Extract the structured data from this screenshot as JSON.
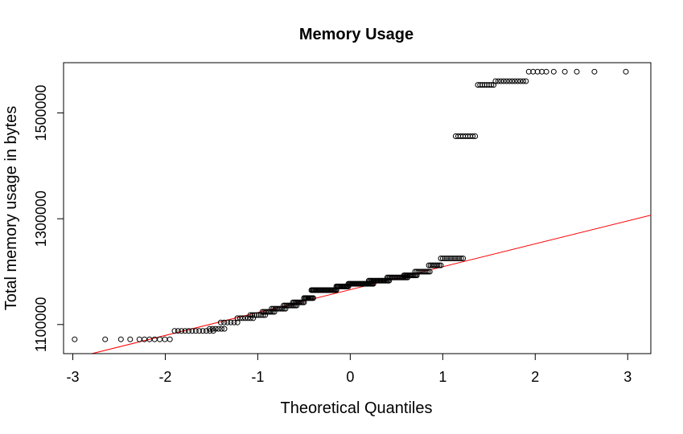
{
  "chart_data": {
    "type": "scatter",
    "title": "Memory Usage",
    "xlabel": "Theoretical Quantiles",
    "ylabel": "Total memory usage in bytes",
    "xlim": [
      -3.1,
      3.25
    ],
    "ylim": [
      1045000,
      1595000
    ],
    "xticks": [
      -3,
      -2,
      -1,
      0,
      1,
      2,
      3
    ],
    "xtick_labels": [
      "-3",
      "-2",
      "-1",
      "0",
      "1",
      "2",
      "3"
    ],
    "yticks": [
      1100000,
      1300000,
      1500000
    ],
    "ytick_labels": [
      "1100000",
      "1300000",
      "1500000"
    ],
    "grid": false,
    "legend": "none",
    "colors": {
      "points": "#000000",
      "reference_line": "#ff0000"
    },
    "points": {
      "segments": [
        {
          "x0": -2.98,
          "x1": -2.98,
          "y": 1072000,
          "n": 1
        },
        {
          "x0": -2.65,
          "x1": -2.65,
          "y": 1072000,
          "n": 1
        },
        {
          "x0": -2.48,
          "x1": -2.38,
          "y": 1072000,
          "n": 2
        },
        {
          "x0": -2.28,
          "x1": -1.95,
          "y": 1072000,
          "n": 7
        },
        {
          "x0": -1.9,
          "x1": -1.48,
          "y": 1088000,
          "n": 12
        },
        {
          "x0": -1.52,
          "x1": -1.36,
          "y": 1092000,
          "n": 6
        },
        {
          "x0": -1.4,
          "x1": -1.22,
          "y": 1104000,
          "n": 6
        },
        {
          "x0": -1.22,
          "x1": -1.05,
          "y": 1112000,
          "n": 7
        },
        {
          "x0": -1.08,
          "x1": -0.92,
          "y": 1118000,
          "n": 8
        },
        {
          "x0": -0.95,
          "x1": -0.82,
          "y": 1124000,
          "n": 8
        },
        {
          "x0": -0.85,
          "x1": -0.7,
          "y": 1130000,
          "n": 9
        },
        {
          "x0": -0.72,
          "x1": -0.58,
          "y": 1136000,
          "n": 10
        },
        {
          "x0": -0.62,
          "x1": -0.5,
          "y": 1142000,
          "n": 10
        },
        {
          "x0": -0.5,
          "x1": -0.4,
          "y": 1150000,
          "n": 10
        },
        {
          "x0": -0.42,
          "x1": -0.15,
          "y": 1165000,
          "n": 28
        },
        {
          "x0": -0.15,
          "x1": -0.02,
          "y": 1172000,
          "n": 14
        },
        {
          "x0": -0.02,
          "x1": 0.25,
          "y": 1177000,
          "n": 26
        },
        {
          "x0": 0.2,
          "x1": 0.42,
          "y": 1183000,
          "n": 20
        },
        {
          "x0": 0.4,
          "x1": 0.62,
          "y": 1189000,
          "n": 18
        },
        {
          "x0": 0.58,
          "x1": 0.72,
          "y": 1193000,
          "n": 12
        },
        {
          "x0": 0.7,
          "x1": 0.86,
          "y": 1200000,
          "n": 10
        },
        {
          "x0": 0.85,
          "x1": 0.98,
          "y": 1212000,
          "n": 8
        },
        {
          "x0": 0.98,
          "x1": 1.22,
          "y": 1225000,
          "n": 12
        },
        {
          "x0": 1.14,
          "x1": 1.35,
          "y": 1456000,
          "n": 9
        },
        {
          "x0": 1.38,
          "x1": 1.55,
          "y": 1553000,
          "n": 8
        },
        {
          "x0": 1.57,
          "x1": 1.9,
          "y": 1560000,
          "n": 12
        },
        {
          "x0": 1.93,
          "x1": 2.12,
          "y": 1578000,
          "n": 5
        },
        {
          "x0": 2.2,
          "x1": 2.2,
          "y": 1578000,
          "n": 1
        },
        {
          "x0": 2.32,
          "x1": 2.32,
          "y": 1578000,
          "n": 1
        },
        {
          "x0": 2.45,
          "x1": 2.45,
          "y": 1578000,
          "n": 1
        },
        {
          "x0": 2.64,
          "x1": 2.64,
          "y": 1578000,
          "n": 1
        },
        {
          "x0": 2.98,
          "x1": 2.98,
          "y": 1578000,
          "n": 1
        }
      ]
    },
    "reference_line": {
      "slope": 43300,
      "intercept": 1166000
    }
  }
}
